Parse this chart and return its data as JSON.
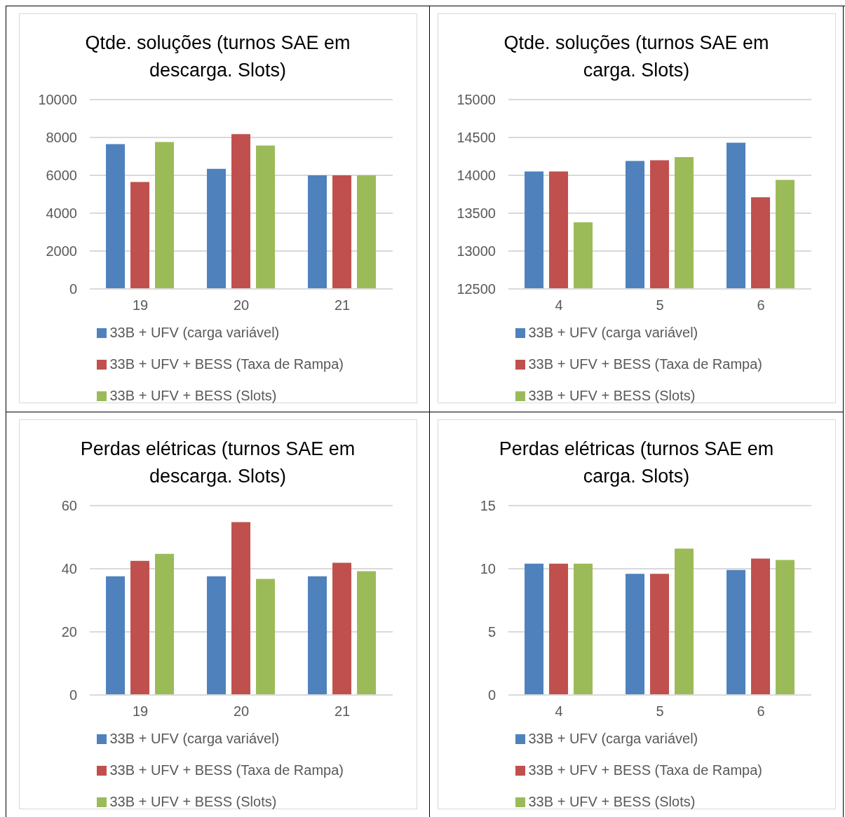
{
  "chart_data": [
    {
      "type": "bar",
      "title": "Qtde. soluções (turnos SAE em descarga. Slots)",
      "categories": [
        "19",
        "20",
        "21"
      ],
      "ylim": [
        0,
        10000
      ],
      "yticks": [
        0,
        2000,
        4000,
        6000,
        8000,
        10000
      ],
      "grid": "y",
      "legend": "bottom",
      "series": [
        {
          "name": "33B + UFV (carga variável)",
          "color": "#4f81bd",
          "values": [
            7650,
            6340,
            6000
          ]
        },
        {
          "name": "33B + UFV + BESS (Taxa de Rampa)",
          "color": "#c0504d",
          "values": [
            5650,
            8180,
            6000
          ]
        },
        {
          "name": "33B + UFV + BESS (Slots)",
          "color": "#9bbb59",
          "values": [
            7760,
            7570,
            6000
          ]
        }
      ]
    },
    {
      "type": "bar",
      "title": "Qtde. soluções (turnos SAE em carga. Slots)",
      "categories": [
        "4",
        "5",
        "6"
      ],
      "ylim": [
        12500,
        15000
      ],
      "yticks": [
        12500,
        13000,
        13500,
        14000,
        14500,
        15000
      ],
      "grid": "y",
      "legend": "bottom",
      "series": [
        {
          "name": "33B + UFV (carga variável)",
          "color": "#4f81bd",
          "values": [
            14050,
            14190,
            14430
          ]
        },
        {
          "name": "33B + UFV + BESS (Taxa de Rampa)",
          "color": "#c0504d",
          "values": [
            14050,
            14200,
            13710
          ]
        },
        {
          "name": "33B + UFV + BESS (Slots)",
          "color": "#9bbb59",
          "values": [
            13380,
            14240,
            13940
          ]
        }
      ]
    },
    {
      "type": "bar",
      "title": "Perdas elétricas (turnos SAE em descarga. Slots)",
      "categories": [
        "19",
        "20",
        "21"
      ],
      "ylim": [
        0,
        60
      ],
      "yticks": [
        0,
        20,
        40,
        60
      ],
      "grid": "y",
      "legend": "bottom",
      "series": [
        {
          "name": "33B + UFV (carga variável)",
          "color": "#4f81bd",
          "values": [
            37.6,
            37.6,
            37.6
          ]
        },
        {
          "name": "33B + UFV + BESS (Taxa de Rampa)",
          "color": "#c0504d",
          "values": [
            42.5,
            54.8,
            41.9
          ]
        },
        {
          "name": "33B + UFV + BESS (Slots)",
          "color": "#9bbb59",
          "values": [
            44.7,
            36.8,
            39.2
          ]
        }
      ]
    },
    {
      "type": "bar",
      "title": "Perdas elétricas (turnos SAE em carga. Slots)",
      "categories": [
        "4",
        "5",
        "6"
      ],
      "ylim": [
        0,
        15
      ],
      "yticks": [
        0,
        5,
        10,
        15
      ],
      "grid": "y",
      "legend": "bottom",
      "series": [
        {
          "name": "33B + UFV (carga variável)",
          "color": "#4f81bd",
          "values": [
            10.4,
            9.6,
            9.9
          ]
        },
        {
          "name": "33B + UFV + BESS (Taxa de Rampa)",
          "color": "#c0504d",
          "values": [
            10.4,
            9.6,
            10.8
          ]
        },
        {
          "name": "33B + UFV + BESS (Slots)",
          "color": "#9bbb59",
          "values": [
            10.4,
            11.6,
            10.7
          ]
        }
      ]
    }
  ]
}
